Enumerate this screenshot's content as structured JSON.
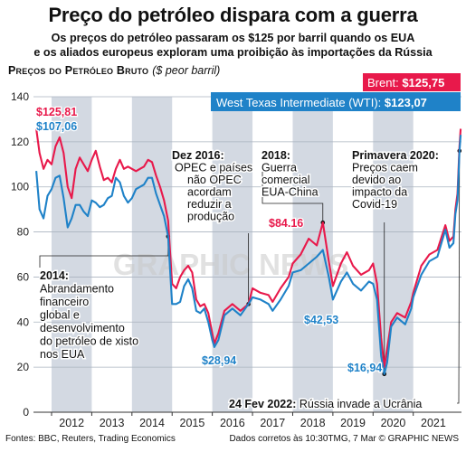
{
  "headline": "Preço do petróleo dispara com a guerra",
  "subline": [
    "Os preços do petróleo passaram os $125 por barril quando os EUA",
    "e os aliados europeus exploram uma proibição às importações da Rússia"
  ],
  "chart_heading": {
    "label": "Preços do Petróleo Bruto",
    "unit": "($ peor barril)"
  },
  "watermark": "GRAPHIC NEWS",
  "source": "Fontes: BBC, Reuters, Trading Economics",
  "timestamp": "Dados corretos às 10:30TMG, 7 Mar  © GRAPHIC NEWS",
  "colors": {
    "brent": "#e8194b",
    "wti": "#1f82c8",
    "band": "#d3d9e2"
  },
  "chart_data": {
    "type": "line",
    "x_unit": "year",
    "xlim": [
      2011.55,
      2022.2
    ],
    "ylim": [
      0,
      140
    ],
    "y_ticks": [
      0,
      20,
      40,
      60,
      80,
      100,
      120,
      140
    ],
    "x_tick_labels": [
      "2012",
      "2013",
      "2014",
      "2015",
      "2016",
      "2017",
      "2018",
      "2019",
      "2020",
      "2021"
    ],
    "grid": true,
    "legend": [
      {
        "series": "brent",
        "label": "Brent:",
        "value": "$125,75"
      },
      {
        "series": "wti",
        "label": "West Texas Intermediate (WTI):",
        "value": "$123,07"
      }
    ],
    "series": [
      {
        "key": "brent",
        "x": [
          2011.62,
          2011.7,
          2011.8,
          2011.9,
          2012.0,
          2012.1,
          2012.2,
          2012.3,
          2012.4,
          2012.5,
          2012.6,
          2012.7,
          2012.8,
          2012.9,
          2013.0,
          2013.1,
          2013.2,
          2013.3,
          2013.4,
          2013.5,
          2013.6,
          2013.7,
          2013.8,
          2013.9,
          2014.0,
          2014.1,
          2014.2,
          2014.3,
          2014.4,
          2014.5,
          2014.6,
          2014.7,
          2014.8,
          2014.9,
          2015.0,
          2015.1,
          2015.2,
          2015.3,
          2015.4,
          2015.5,
          2015.6,
          2015.7,
          2015.8,
          2015.9,
          2016.0,
          2016.05,
          2016.15,
          2016.3,
          2016.5,
          2016.7,
          2016.9,
          2017.0,
          2017.2,
          2017.4,
          2017.5,
          2017.7,
          2017.9,
          2018.0,
          2018.2,
          2018.4,
          2018.6,
          2018.75,
          2018.9,
          2019.0,
          2019.2,
          2019.35,
          2019.5,
          2019.7,
          2019.9,
          2020.0,
          2020.1,
          2020.2,
          2020.28,
          2020.35,
          2020.45,
          2020.6,
          2020.8,
          2020.95,
          2021.0,
          2021.2,
          2021.4,
          2021.6,
          2021.8,
          2021.9,
          2022.0,
          2022.05,
          2022.1,
          2022.15,
          2022.18
        ],
        "y": [
          125.81,
          115,
          108,
          112,
          110,
          118,
          122,
          115,
          100,
          95,
          108,
          113,
          110,
          107,
          112,
          116,
          109,
          103,
          104,
          102,
          108,
          112,
          108,
          109,
          108,
          107,
          108,
          109,
          112,
          111,
          105,
          100,
          94,
          85,
          57,
          55,
          60,
          63,
          65,
          62,
          50,
          47,
          48,
          44,
          35,
          30.5,
          35,
          45,
          48,
          45,
          48,
          55,
          53,
          52,
          49,
          55,
          60,
          66,
          70,
          77,
          74,
          84.16,
          67,
          56,
          66,
          71,
          65,
          61,
          63,
          66,
          57,
          33,
          20,
          28,
          40,
          44,
          42,
          49,
          53,
          65,
          70,
          72,
          83,
          76,
          78,
          90,
          97,
          118,
          125.75
        ]
      },
      {
        "key": "wti",
        "x": [
          2011.62,
          2011.7,
          2011.8,
          2011.9,
          2012.0,
          2012.1,
          2012.2,
          2012.3,
          2012.4,
          2012.5,
          2012.6,
          2012.7,
          2012.8,
          2012.9,
          2013.0,
          2013.1,
          2013.2,
          2013.3,
          2013.4,
          2013.5,
          2013.6,
          2013.7,
          2013.8,
          2013.9,
          2014.0,
          2014.1,
          2014.2,
          2014.3,
          2014.4,
          2014.5,
          2014.6,
          2014.7,
          2014.8,
          2014.9,
          2015.0,
          2015.1,
          2015.2,
          2015.3,
          2015.4,
          2015.5,
          2015.6,
          2015.7,
          2015.8,
          2015.9,
          2016.0,
          2016.05,
          2016.15,
          2016.3,
          2016.5,
          2016.7,
          2016.9,
          2017.0,
          2017.2,
          2017.4,
          2017.5,
          2017.7,
          2017.9,
          2018.0,
          2018.2,
          2018.4,
          2018.6,
          2018.75,
          2018.9,
          2019.0,
          2019.2,
          2019.35,
          2019.5,
          2019.7,
          2019.9,
          2020.0,
          2020.1,
          2020.2,
          2020.28,
          2020.35,
          2020.45,
          2020.6,
          2020.8,
          2020.95,
          2021.0,
          2021.2,
          2021.4,
          2021.6,
          2021.8,
          2021.9,
          2022.0,
          2022.05,
          2022.1,
          2022.15,
          2022.18
        ],
        "y": [
          107.06,
          90,
          86,
          96,
          99,
          104,
          105,
          95,
          82,
          86,
          92,
          92,
          89,
          87,
          94,
          93,
          91,
          92,
          95,
          96,
          104,
          102,
          96,
          93,
          95,
          99,
          100,
          101,
          104,
          104,
          97,
          92,
          87,
          78,
          48,
          48,
          49,
          56,
          59,
          55,
          45,
          44,
          46,
          40,
          32,
          28.94,
          32,
          43,
          46,
          43,
          48,
          51,
          50,
          48,
          45,
          50,
          56,
          62,
          63,
          66,
          69,
          72,
          60,
          50,
          58,
          62,
          57,
          54,
          58,
          57,
          50,
          25,
          16.94,
          22,
          38,
          42,
          39,
          46,
          51,
          61,
          67,
          69,
          81,
          73,
          75,
          88,
          94,
          116,
          123.07
        ]
      }
    ],
    "annotations": [
      {
        "key": "a2016",
        "head": "Dez 2016:",
        "lines": [
          "OPEC e países",
          "não OPEC",
          "acordam",
          "reduzir a",
          "produção"
        ]
      },
      {
        "key": "a2018",
        "head": "2018:",
        "lines": [
          "Guerra",
          "comercial",
          "EUA-China"
        ]
      },
      {
        "key": "a2020",
        "head": "Primavera 2020:",
        "lines": [
          "Preços caem",
          "devido ao",
          "impacto da",
          "Covid-19"
        ]
      },
      {
        "key": "a2014",
        "head": "2014:",
        "lines": [
          "Abrandamento",
          "financeiro",
          "global e",
          "desenvolvimento",
          "do petróleo de xisto",
          "nos EUA"
        ]
      },
      {
        "key": "a2022",
        "head": "24 Fev 2022:",
        "lines": [
          "Rússia invade a Ucrânia"
        ]
      }
    ],
    "value_labels": [
      {
        "series": "brent",
        "text": "$125,81"
      },
      {
        "series": "wti",
        "text": "$107,06"
      },
      {
        "series": "wti",
        "text": "$28,94"
      },
      {
        "series": "brent",
        "text": "$84.16"
      },
      {
        "series": "wti",
        "text": "$42,53"
      },
      {
        "series": "wti",
        "text": "$16,94"
      }
    ]
  }
}
